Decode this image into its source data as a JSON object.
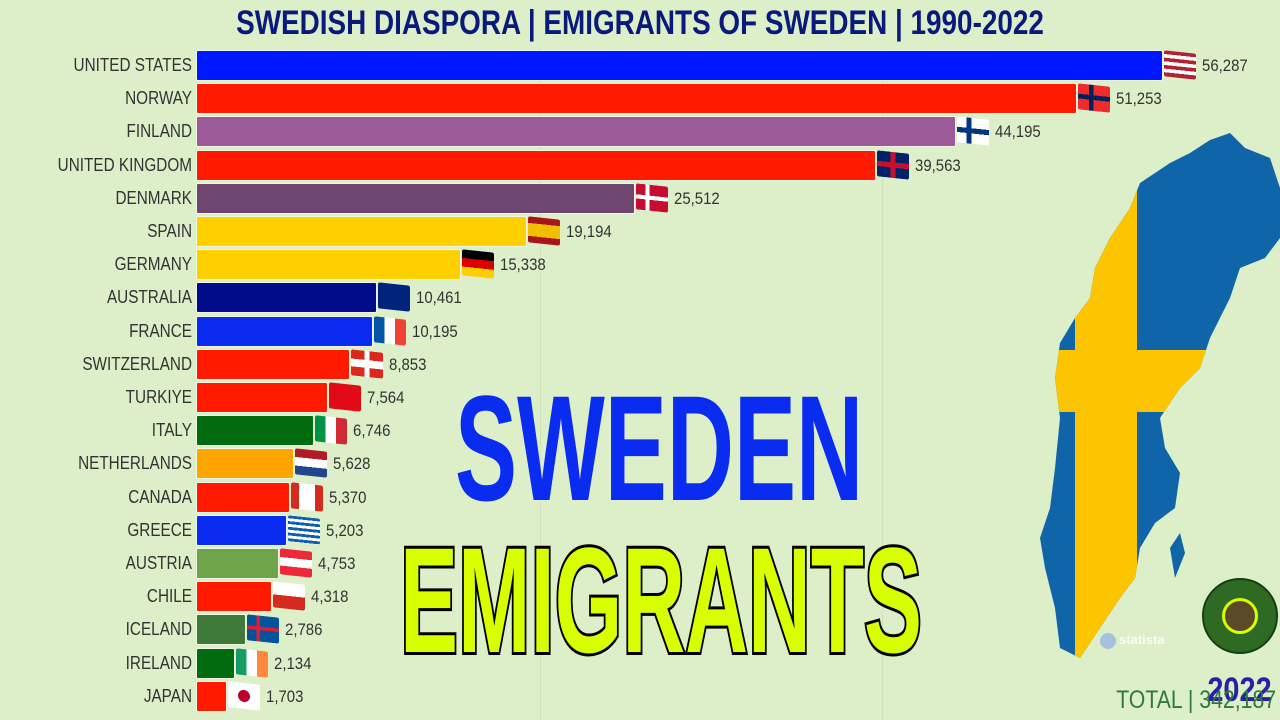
{
  "title": "SWEDISH DIASPORA | EMIGRANTS OF SWEDEN | 1990-2022",
  "overlay": {
    "line1": "SWEDEN",
    "line2": "EMIGRANTS"
  },
  "year": "2022",
  "total": "TOTAL | 342,187",
  "source": "statista",
  "chart_data": {
    "type": "bar",
    "orientation": "horizontal",
    "title": "SWEDISH DIASPORA | EMIGRANTS OF SWEDEN | 1990-2022",
    "year": 2022,
    "total": 342187,
    "categories": [
      "UNITED STATES",
      "NORWAY",
      "FINLAND",
      "UNITED KINGDOM",
      "DENMARK",
      "SPAIN",
      "GERMANY",
      "AUSTRALIA",
      "FRANCE",
      "SWITZERLAND",
      "TURKIYE",
      "ITALY",
      "NETHERLANDS",
      "CANADA",
      "GREECE",
      "AUSTRIA",
      "CHILE",
      "ICELAND",
      "IRELAND",
      "JAPAN"
    ],
    "values": [
      56287,
      51253,
      44195,
      39563,
      25512,
      19194,
      15338,
      10461,
      10195,
      8853,
      7564,
      6746,
      5628,
      5370,
      5203,
      4753,
      4318,
      2786,
      2134,
      1703
    ],
    "labels": [
      "56,287",
      "51,253",
      "44,195",
      "39,563",
      "25,512",
      "19,194",
      "15,338",
      "10,461",
      "10,195",
      "8,853",
      "7,564",
      "6,746",
      "5,628",
      "5,370",
      "5,203",
      "4,753",
      "4,318",
      "2,786",
      "2,134",
      "1,703"
    ],
    "colors": [
      "#0018ff",
      "#ff1a00",
      "#9c5a98",
      "#ff1a00",
      "#6f466f",
      "#ffd000",
      "#ffd000",
      "#000c8a",
      "#0a2cf0",
      "#ff1a00",
      "#ff1a00",
      "#006b0f",
      "#ffa500",
      "#ff1a00",
      "#0a2cf0",
      "#6fa44a",
      "#ff1a00",
      "#3f7a3a",
      "#006b0f",
      "#ff1a00"
    ],
    "flags": [
      "us-flag-icon",
      "norway-flag-icon",
      "finland-flag-icon",
      "uk-flag-icon",
      "denmark-flag-icon",
      "spain-flag-icon",
      "germany-flag-icon",
      "australia-flag-icon",
      "france-flag-icon",
      "switzerland-flag-icon",
      "turkey-flag-icon",
      "italy-flag-icon",
      "netherlands-flag-icon",
      "canada-flag-icon",
      "greece-flag-icon",
      "austria-flag-icon",
      "chile-flag-icon",
      "iceland-flag-icon",
      "ireland-flag-icon",
      "japan-flag-icon"
    ],
    "xlim": [
      0,
      56287
    ],
    "grid": true,
    "xlabel": "",
    "ylabel": ""
  }
}
